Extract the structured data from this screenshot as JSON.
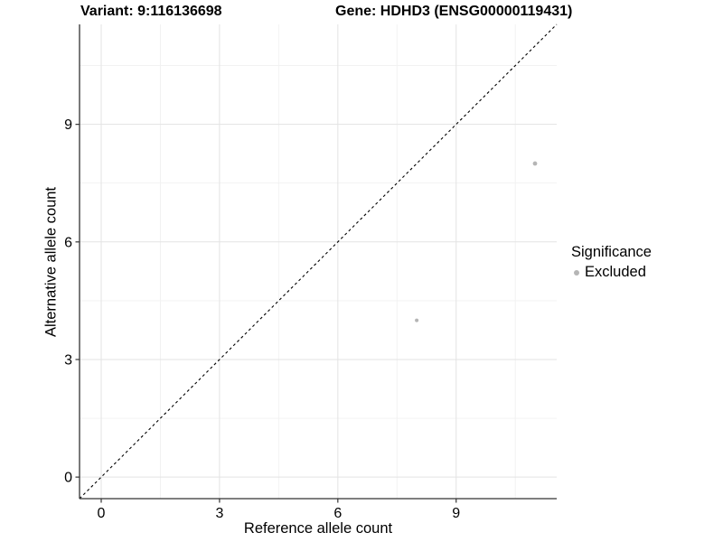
{
  "titles": {
    "variant": "Variant: 9:116136698",
    "gene": "Gene: HDHD3 (ENSG00000119431)"
  },
  "chart_data": {
    "type": "scatter",
    "xlabel": "Reference allele count",
    "ylabel": "Alternative allele count",
    "xlim": [
      -0.55,
      11.55
    ],
    "ylim": [
      -0.55,
      11.55
    ],
    "x_ticks": [
      0,
      3,
      6,
      9
    ],
    "y_ticks": [
      0,
      3,
      6,
      9
    ],
    "x_minor_ticks": [
      1.5,
      4.5,
      7.5,
      10.5
    ],
    "y_minor_ticks": [
      1.5,
      4.5,
      7.5,
      10.5
    ],
    "grid": "major+minor",
    "reference_line": {
      "type": "identity",
      "style": "dashed",
      "color": "#000000"
    },
    "series": [
      {
        "name": "Excluded",
        "color": "#b5b5b5",
        "points": [
          {
            "x": 8,
            "y": 4,
            "r": 2.0
          },
          {
            "x": 11,
            "y": 8,
            "r": 2.4
          }
        ]
      }
    ],
    "legend": {
      "position": "right",
      "title": "Significance",
      "items": [
        {
          "label": "Excluded",
          "color": "#b5b5b5"
        }
      ]
    },
    "colors": {
      "background": "#ffffff",
      "grid_major": "#e3e3e3",
      "grid_minor": "#f1f1f1",
      "axis_line": "#333333",
      "tick_label": "#000000"
    }
  }
}
